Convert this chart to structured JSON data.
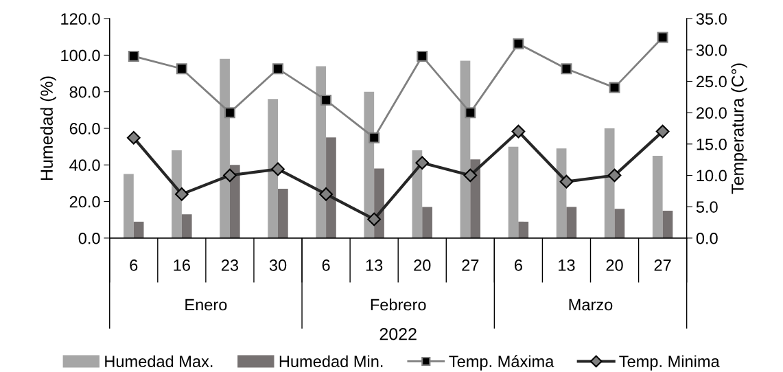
{
  "chart_data": {
    "type": "bar",
    "xlabel": "2022",
    "ylabel": "Humedad (%)",
    "y2label": "Temperatura (C°)",
    "categories": [
      "6",
      "16",
      "23",
      "30",
      "6",
      "13",
      "20",
      "27",
      "6",
      "13",
      "20",
      "27"
    ],
    "annotations": [
      "Enero",
      "Febrero",
      "Marzo"
    ],
    "series": [
      {
        "name": "Humedad Max.",
        "color": "#a6a6a6",
        "values": [
          35,
          48,
          98,
          76,
          94,
          80,
          48,
          97,
          50,
          49,
          60,
          45
        ]
      },
      {
        "name": "Humedad Min.",
        "color": "#767171",
        "values": [
          9,
          13,
          40,
          27,
          55,
          38,
          17,
          43,
          9,
          17,
          16,
          15
        ]
      },
      {
        "name": "Temp. Máxima",
        "type": "line",
        "axis": "y2",
        "color": "#808080",
        "marker": "square",
        "values": [
          29,
          27,
          20,
          27,
          22,
          16,
          29,
          20,
          31,
          27,
          24,
          32
        ]
      },
      {
        "name": "Temp. Minima",
        "type": "line",
        "axis": "y2",
        "color": "#262626",
        "marker": "diamond",
        "values": [
          16,
          7,
          10,
          11,
          7,
          3,
          12,
          10,
          17,
          9,
          10,
          17
        ]
      }
    ],
    "ylim": [
      0,
      120
    ],
    "yticks": [
      {
        "value": 0,
        "label": "0.0"
      },
      {
        "value": 20,
        "label": "20.0"
      },
      {
        "value": 40,
        "label": "40.0"
      },
      {
        "value": 60,
        "label": "60.0"
      },
      {
        "value": 80,
        "label": "80.0"
      },
      {
        "value": 100,
        "label": "100.0"
      },
      {
        "value": 120,
        "label": "120.0"
      }
    ],
    "y2lim": [
      0,
      35
    ],
    "y2ticks": [
      {
        "value": 0,
        "label": "0.0"
      },
      {
        "value": 5,
        "label": "5.0"
      },
      {
        "value": 10,
        "label": "10.0"
      },
      {
        "value": 15,
        "label": "15.0"
      },
      {
        "value": 20,
        "label": "20.0"
      },
      {
        "value": 25,
        "label": "25.0"
      },
      {
        "value": 30,
        "label": "30.0"
      },
      {
        "value": 35,
        "label": "35.0"
      }
    ],
    "legend": "bottom",
    "grid": false
  }
}
